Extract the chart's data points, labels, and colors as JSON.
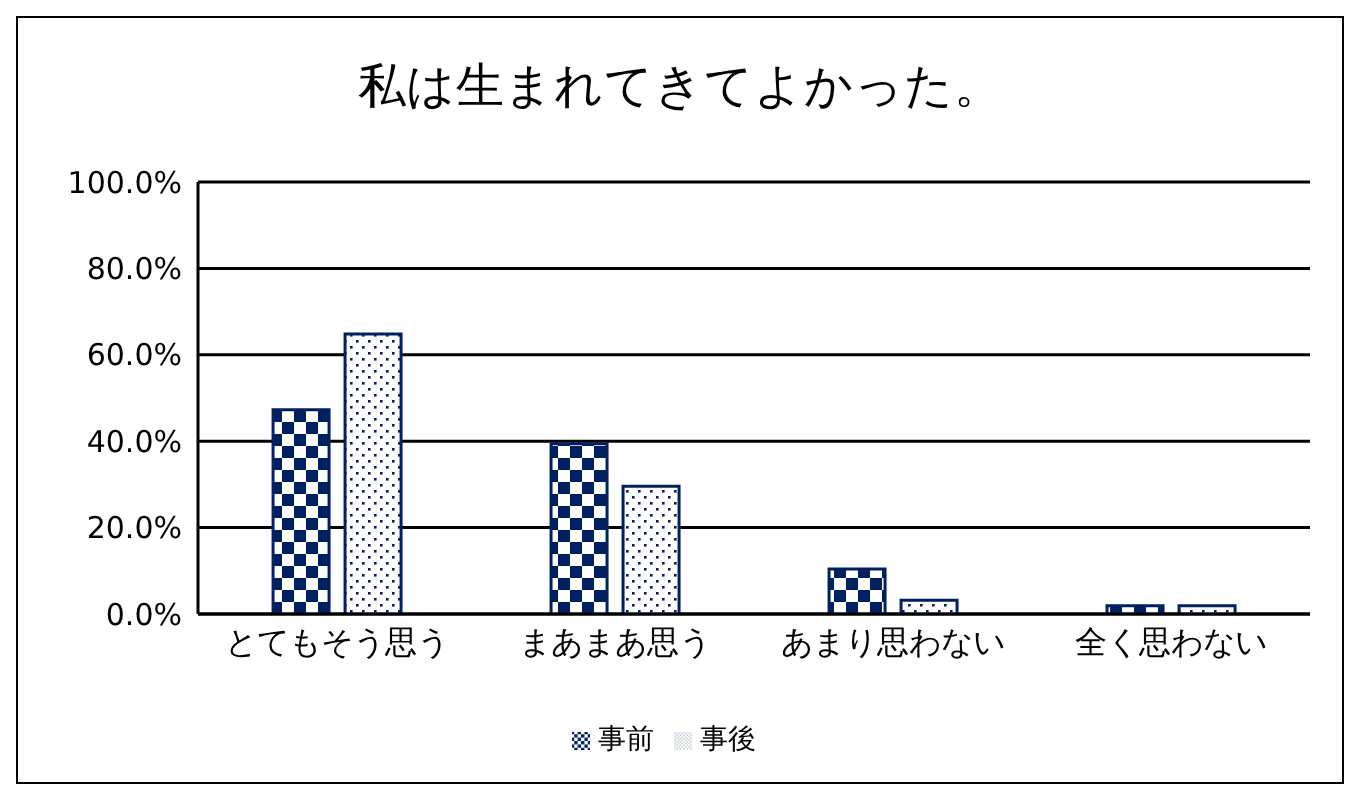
{
  "chart_data": {
    "type": "bar",
    "title": "私は生まれてきてよかった。",
    "categories": [
      "とてもそう思う",
      "まあまあ思う",
      "あまり思わない",
      "全く思わない"
    ],
    "series": [
      {
        "name": "事前",
        "color": "#002060",
        "values": [
          47.3,
          39.4,
          10.4,
          1.9
        ]
      },
      {
        "name": "事後",
        "color": "#002060",
        "values": [
          64.8,
          29.6,
          3.2,
          1.9
        ]
      }
    ],
    "ylim": [
      0,
      100
    ],
    "yticks": [
      {
        "value": 0,
        "label": "0.0%"
      },
      {
        "value": 20,
        "label": "20.0%"
      },
      {
        "value": 40,
        "label": "40.0%"
      },
      {
        "value": 60,
        "label": "60.0%"
      },
      {
        "value": 80,
        "label": "80.0%"
      },
      {
        "value": 100,
        "label": "100.0%"
      }
    ],
    "grid": "y",
    "legend": "bottom"
  }
}
